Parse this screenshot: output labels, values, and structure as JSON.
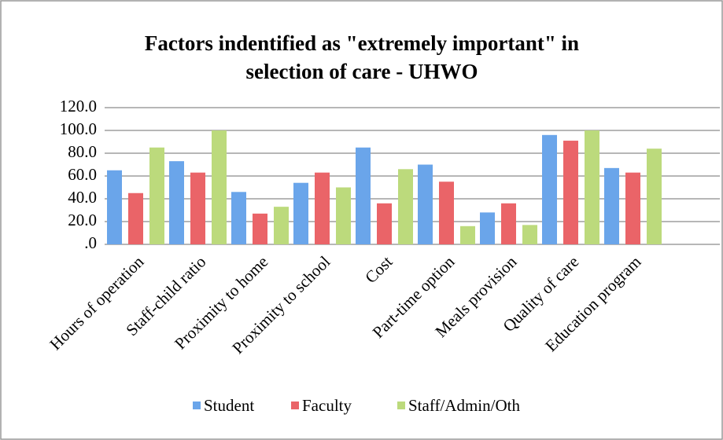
{
  "chart_data": {
    "type": "bar",
    "title": [
      "Factors indentified as \"extremely important\" in",
      "selection of care - UHWO"
    ],
    "categories": [
      "Hours of operation",
      "Staff-child ratio",
      "Proximity to home",
      "Proximity to school",
      "Cost",
      "Part-time option",
      "Meals provision",
      "Quality of care",
      "Education program"
    ],
    "series": [
      {
        "name": "Student",
        "color": "#6aa5ea",
        "values": [
          65,
          73,
          46,
          54,
          85,
          70,
          28,
          96,
          67
        ]
      },
      {
        "name": "Faculty",
        "color": "#ea6468",
        "values": [
          45,
          63,
          27,
          63,
          36,
          55,
          36,
          91,
          63
        ]
      },
      {
        "name": "Staff/Admin/Oth",
        "color": "#bcda7c",
        "values": [
          85,
          100,
          33,
          50,
          66,
          16,
          17,
          100,
          84
        ]
      }
    ],
    "ylim": [
      0,
      120
    ],
    "yticks": [
      {
        "value": 0,
        "label": ".0"
      },
      {
        "value": 20,
        "label": "20.0"
      },
      {
        "value": 40,
        "label": "40.0"
      },
      {
        "value": 60,
        "label": "60.0"
      },
      {
        "value": 80,
        "label": "80.0"
      },
      {
        "value": 100,
        "label": "100.0"
      },
      {
        "value": 120,
        "label": "120.0"
      }
    ],
    "grid": true,
    "legend": "bottom"
  }
}
